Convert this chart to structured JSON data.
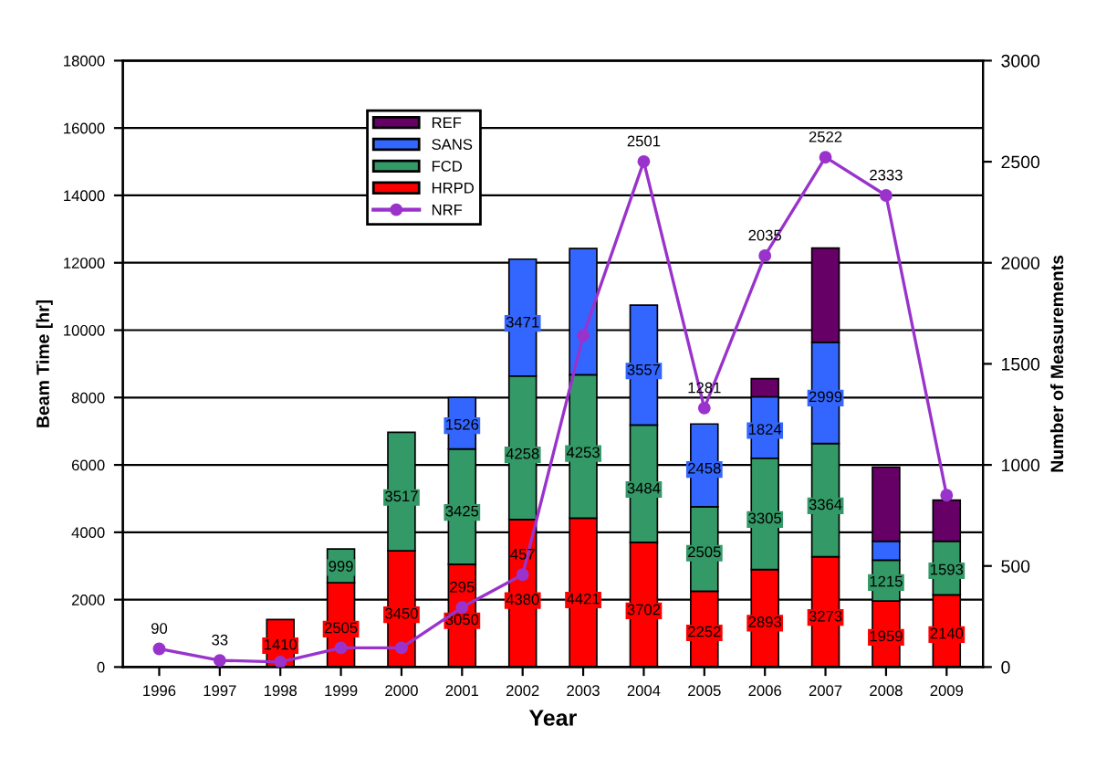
{
  "chart_data": {
    "type": "bar",
    "stacked": true,
    "xlabel": "Year",
    "ylabel": "Beam Time [hr]",
    "y2label": "Number of Measurements",
    "categories": [
      "1996",
      "1997",
      "1998",
      "1999",
      "2000",
      "2001",
      "2002",
      "2003",
      "2004",
      "2005",
      "2006",
      "2007",
      "2008",
      "2009"
    ],
    "series": [
      {
        "name": "HRPD",
        "color": "#ff0000",
        "values": [
          null,
          null,
          1410,
          2505,
          3450,
          3050,
          4380,
          4421,
          3702,
          2252,
          2893,
          3273,
          1959,
          2140
        ],
        "value_labels": [
          null,
          null,
          "1410",
          "2505",
          "3450",
          "3050",
          "4380",
          "4421",
          "3702",
          "2252",
          "2893",
          "3273",
          "1959",
          "2140"
        ]
      },
      {
        "name": "FCD",
        "color": "#339966",
        "values": [
          null,
          null,
          null,
          999,
          3517,
          3425,
          4258,
          4253,
          3484,
          2505,
          3305,
          3364,
          1215,
          1593
        ],
        "value_labels": [
          null,
          null,
          null,
          "999",
          "3517",
          "3425",
          "4258",
          "4253",
          "3484",
          "2505",
          "3305",
          "3364",
          "1215",
          "1593"
        ]
      },
      {
        "name": "SANS",
        "color": "#3366ff",
        "values": [
          null,
          null,
          null,
          null,
          null,
          1526,
          3471,
          3750,
          3557,
          2458,
          1824,
          2999,
          560,
          null
        ],
        "value_labels": [
          null,
          null,
          null,
          null,
          null,
          "1526",
          "3471",
          null,
          "3557",
          "2458",
          "1824",
          "2999",
          null,
          null
        ]
      },
      {
        "name": "REF",
        "color": "#660066",
        "values": [
          null,
          null,
          null,
          null,
          null,
          null,
          null,
          null,
          null,
          null,
          540,
          2800,
          2200,
          1220
        ],
        "value_labels": [
          null,
          null,
          null,
          null,
          null,
          null,
          null,
          null,
          null,
          null,
          null,
          null,
          null,
          null
        ]
      },
      {
        "name": "NRF",
        "type": "line",
        "axis": "y2",
        "color": "#9933cc",
        "values": [
          90,
          33,
          25,
          95,
          95,
          295,
          457,
          1640,
          2501,
          1281,
          2035,
          2522,
          2333,
          850
        ],
        "value_labels": [
          "90",
          "33",
          null,
          null,
          null,
          "295",
          "457",
          null,
          "2501",
          "1281",
          "2035",
          "2522",
          "2333",
          null
        ]
      }
    ],
    "ylim": [
      0,
      18000
    ],
    "yticks": [
      0,
      2000,
      4000,
      6000,
      8000,
      10000,
      12000,
      14000,
      16000,
      18000
    ],
    "y2lim": [
      0,
      3000
    ],
    "y2ticks": [
      0,
      500,
      1000,
      1500,
      2000,
      2500,
      3000
    ],
    "grid": "y",
    "legend": "top",
    "marker": "circle",
    "line_style": "solid"
  }
}
